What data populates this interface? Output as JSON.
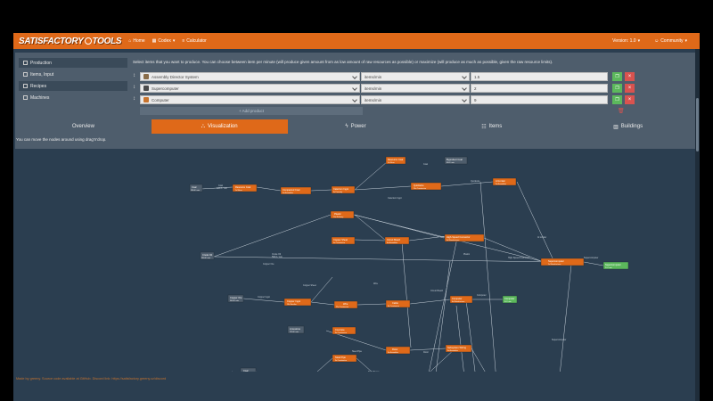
{
  "navbar": {
    "brand_left": "SATISFACTORY",
    "brand_right": "TOOLS",
    "items": [
      {
        "label": "Home",
        "icon": "home-icon"
      },
      {
        "label": "Codex",
        "icon": "book-icon"
      },
      {
        "label": "Calculator",
        "icon": "sliders-icon"
      }
    ],
    "version": "Version: 1.0",
    "community": "Community"
  },
  "sidebar": {
    "items": [
      {
        "label": "Production"
      },
      {
        "label": "Items, Input"
      },
      {
        "label": "Recipes"
      },
      {
        "label": "Machines"
      }
    ]
  },
  "production": {
    "hint": "Select items that you want to produce. You can choose between item per minute (will produce given amount from as low amount of raw resources as possible) or maximize (will produce as much as possible, given the raw resource limits).",
    "rows": [
      {
        "item": "Assembly Director System",
        "unit": "items/min",
        "amount": "1.5",
        "icon_color": "#8a6d4a"
      },
      {
        "item": "Supercomputer",
        "unit": "items/min",
        "amount": "2",
        "icon_color": "#4b4b4b"
      },
      {
        "item": "Computer",
        "unit": "items/min",
        "amount": "9",
        "icon_color": "#c8742e"
      }
    ],
    "add_label": "+ Add product"
  },
  "tabs": [
    {
      "label": "Overview",
      "icon": ""
    },
    {
      "label": "Visualization",
      "icon": "flow-icon",
      "active": true
    },
    {
      "label": "Power",
      "icon": "bolt-icon"
    },
    {
      "label": "Items",
      "icon": "users-icon"
    },
    {
      "label": "Buildings",
      "icon": "building-icon"
    }
  ],
  "canvas_hint": "You can move the nodes around using drag'n'drop.",
  "footer": "Made by greeny. Source code available at GitHub. Discord link: https://satisfactory.greeny.cz/discord",
  "colors": {
    "navbar": "#df6919",
    "background": "#2b3e50",
    "panel": "#4e5d6c",
    "node_recipe": "#df6919",
    "node_resource": "#4e5d6c",
    "node_product": "#5cb85c",
    "edge": "#c6d0d9"
  }
}
